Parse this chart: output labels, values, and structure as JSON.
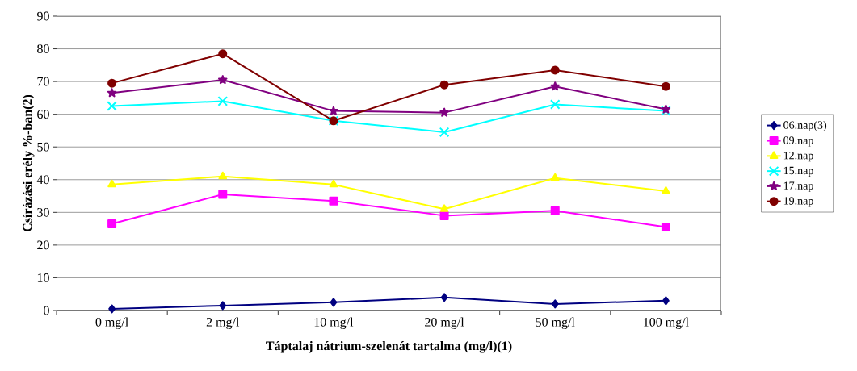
{
  "chart_data": {
    "type": "line",
    "xlabel": "Táptalaj nátrium-szelenát tartalma (mg/l)(1)",
    "ylabel": "Csírázási erély %-ban(2)",
    "categories": [
      "0 mg/l",
      "2 mg/l",
      "10 mg/l",
      "20 mg/l",
      "50 mg/l",
      "100 mg/l"
    ],
    "ylim": [
      0,
      90
    ],
    "yticks": [
      0,
      10,
      20,
      30,
      40,
      50,
      60,
      70,
      80,
      90
    ],
    "grid": "y",
    "legend": "right",
    "line_style": "solid",
    "series": [
      {
        "name": "06.nap(3)",
        "color": "#000080",
        "marker": "diamond",
        "values": [
          0.5,
          1.5,
          2.5,
          4,
          2,
          3
        ]
      },
      {
        "name": "09.nap",
        "color": "#ff00ff",
        "marker": "square",
        "values": [
          26.5,
          35.5,
          33.5,
          29,
          30.5,
          25.5
        ]
      },
      {
        "name": "12.nap",
        "color": "#ffff00",
        "marker": "triangle",
        "values": [
          38.5,
          41,
          38.5,
          31,
          40.5,
          36.5
        ]
      },
      {
        "name": "15.nap",
        "color": "#00ffff",
        "marker": "cross",
        "values": [
          62.5,
          64,
          58,
          54.5,
          63,
          61
        ]
      },
      {
        "name": "17.nap",
        "color": "#800080",
        "marker": "star",
        "values": [
          66.5,
          70.5,
          61,
          60.5,
          68.5,
          61.5
        ]
      },
      {
        "name": "19.nap",
        "color": "#800000",
        "marker": "circle",
        "values": [
          69.5,
          78.5,
          58,
          69,
          73.5,
          68.5
        ]
      }
    ]
  }
}
